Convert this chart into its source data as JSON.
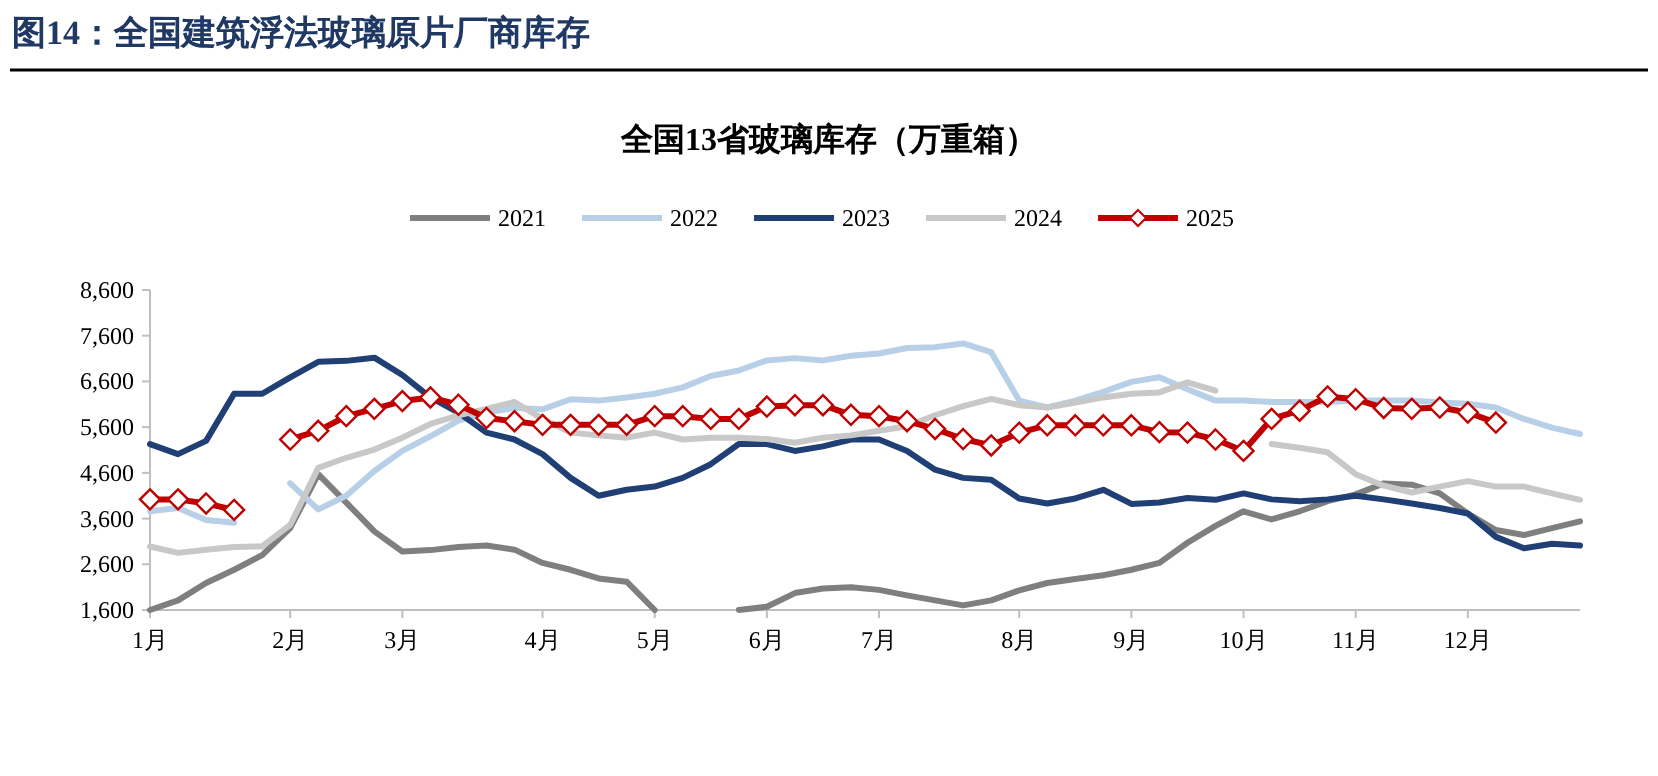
{
  "chart_data": {
    "type": "line",
    "title": "图14：全国建筑浮法玻璃原片厂商库存",
    "subtitle": "全国13省玻璃库存（万重箱）",
    "legend": "top",
    "categories": [
      "1月",
      null,
      null,
      null,
      null,
      "2月",
      null,
      null,
      null,
      "3月",
      null,
      null,
      null,
      null,
      "4月",
      null,
      null,
      null,
      "5月",
      null,
      null,
      null,
      "6月",
      null,
      null,
      null,
      "7月",
      null,
      null,
      null,
      null,
      "8月",
      null,
      null,
      null,
      "9月",
      null,
      null,
      null,
      "10月",
      null,
      null,
      null,
      "11月",
      null,
      null,
      null,
      "12月",
      null,
      null,
      null,
      null
    ],
    "ylim": [
      1600,
      8600
    ],
    "yticks": [
      {
        "value": 1600,
        "label": "1,600"
      },
      {
        "value": 2600,
        "label": "2,600"
      },
      {
        "value": 3600,
        "label": "3,600"
      },
      {
        "value": 4600,
        "label": "4,600"
      },
      {
        "value": 5600,
        "label": "5,600"
      },
      {
        "value": 6600,
        "label": "6,600"
      },
      {
        "value": 7600,
        "label": "7,600"
      },
      {
        "value": 8600,
        "label": "8,600"
      }
    ],
    "series": [
      {
        "name": "2021",
        "color": "#7f7f7f",
        "marker": "none",
        "values": [
          1600,
          1810,
          2190,
          2480,
          2800,
          3390,
          4570,
          3950,
          3320,
          2880,
          2910,
          2980,
          3010,
          2920,
          2630,
          2480,
          2290,
          2220,
          1600,
          null,
          null,
          1600,
          1670,
          1970,
          2070,
          2100,
          2040,
          1920,
          1810,
          1700,
          1810,
          2030,
          2190,
          2280,
          2360,
          2480,
          2630,
          3070,
          3440,
          3760,
          3580,
          3760,
          3980,
          4130,
          4370,
          4340,
          4150,
          3710,
          3350,
          3240,
          3390,
          3540
        ]
      },
      {
        "name": "2022",
        "color": "#b8cfe8",
        "marker": "none",
        "values": [
          3760,
          3830,
          3570,
          3510,
          null,
          4370,
          3800,
          4100,
          4640,
          5080,
          5400,
          5740,
          5920,
          6020,
          5990,
          6210,
          6180,
          6250,
          6330,
          6470,
          6720,
          6840,
          7060,
          7110,
          7060,
          7160,
          7210,
          7330,
          7350,
          7430,
          7240,
          6180,
          6030,
          6180,
          6370,
          6590,
          6690,
          6430,
          6180,
          6180,
          6150,
          6150,
          6150,
          6180,
          6180,
          6180,
          6140,
          6110,
          6030,
          5780,
          5590,
          5450
        ]
      },
      {
        "name": "2023",
        "color": "#203f75",
        "marker": "none",
        "values": [
          5230,
          5010,
          5300,
          6330,
          6330,
          6690,
          7030,
          7050,
          7120,
          6740,
          6250,
          5920,
          5480,
          5330,
          5010,
          4490,
          4100,
          4230,
          4300,
          4490,
          4790,
          5230,
          5230,
          5080,
          5180,
          5330,
          5330,
          5080,
          4670,
          4490,
          4450,
          4040,
          3930,
          4040,
          4230,
          3920,
          3950,
          4050,
          4010,
          4150,
          4020,
          3980,
          4020,
          4100,
          4020,
          3930,
          3830,
          3710,
          3200,
          2950,
          3050,
          3010
        ]
      },
      {
        "name": "2024",
        "color": "#c8c8c8",
        "marker": "none",
        "values": [
          2990,
          2850,
          2920,
          2980,
          2990,
          3460,
          4710,
          4930,
          5110,
          5370,
          5670,
          5860,
          6000,
          6150,
          5780,
          5480,
          5420,
          5370,
          5480,
          5330,
          5370,
          5370,
          5340,
          5260,
          5370,
          5420,
          5520,
          5620,
          5860,
          6060,
          6220,
          6080,
          6030,
          6140,
          6250,
          6330,
          6360,
          6580,
          6400,
          null,
          5230,
          5150,
          5050,
          4570,
          4320,
          4170,
          4300,
          4420,
          4300,
          4300,
          4150,
          4010
        ]
      },
      {
        "name": "2025",
        "color": "#c00000",
        "marker": "diamond",
        "values": [
          4020,
          4020,
          3930,
          3790,
          null,
          5330,
          5520,
          5840,
          6000,
          6170,
          6250,
          6090,
          5800,
          5730,
          5650,
          5650,
          5650,
          5650,
          5840,
          5840,
          5780,
          5780,
          6050,
          6080,
          6080,
          5870,
          5840,
          5730,
          5560,
          5340,
          5200,
          5480,
          5640,
          5640,
          5640,
          5640,
          5490,
          5480,
          5330,
          5080,
          5780,
          5960,
          6270,
          6210,
          6020,
          6000,
          6030,
          5920,
          5700,
          null,
          null,
          null
        ]
      }
    ]
  }
}
